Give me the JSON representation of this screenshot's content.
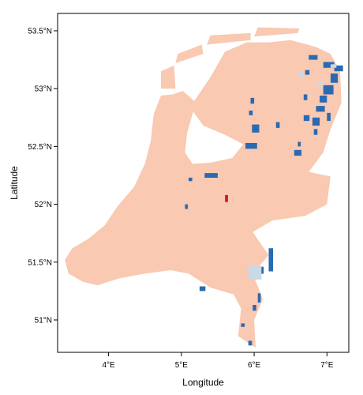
{
  "chart_data": {
    "type": "heatmap",
    "title": "",
    "xlabel": "Longitude",
    "ylabel": "Latitude",
    "xlim": [
      3.3,
      7.3
    ],
    "ylim": [
      50.72,
      53.65
    ],
    "x_ticks": [
      {
        "value": 4,
        "label": "4°E"
      },
      {
        "value": 5,
        "label": "5°E"
      },
      {
        "value": 6,
        "label": "6°E"
      },
      {
        "value": 7,
        "label": "7°E"
      }
    ],
    "y_ticks": [
      {
        "value": 51.0,
        "label": "51°N"
      },
      {
        "value": 51.5,
        "label": "51.5°N"
      },
      {
        "value": 52.0,
        "label": "52°N"
      },
      {
        "value": 52.5,
        "label": "52.5°N"
      },
      {
        "value": 53.0,
        "label": "53°N"
      },
      {
        "value": 53.5,
        "label": "53.5°N"
      }
    ],
    "grid": false,
    "legend": "none",
    "colors": {
      "land": "#f9c9b1",
      "high": "#2a6ab2",
      "medium": "#c9d9e6",
      "hotspot": "#cc1a22"
    },
    "land_outline_lonlat": [
      [
        4.72,
        52.94
      ],
      [
        4.62,
        52.78
      ],
      [
        4.58,
        52.55
      ],
      [
        4.5,
        52.35
      ],
      [
        4.35,
        52.15
      ],
      [
        4.12,
        51.98
      ],
      [
        3.95,
        51.82
      ],
      [
        3.72,
        51.7
      ],
      [
        3.5,
        51.62
      ],
      [
        3.4,
        51.52
      ],
      [
        3.45,
        51.4
      ],
      [
        3.65,
        51.33
      ],
      [
        3.85,
        51.3
      ],
      [
        4.15,
        51.36
      ],
      [
        4.5,
        51.4
      ],
      [
        4.85,
        51.43
      ],
      [
        5.1,
        51.4
      ],
      [
        5.4,
        51.28
      ],
      [
        5.72,
        51.22
      ],
      [
        5.82,
        51.1
      ],
      [
        5.78,
        50.86
      ],
      [
        6.02,
        50.76
      ],
      [
        6.0,
        51.0
      ],
      [
        6.12,
        51.18
      ],
      [
        5.98,
        51.4
      ],
      [
        6.2,
        51.56
      ],
      [
        5.98,
        51.76
      ],
      [
        6.25,
        51.86
      ],
      [
        6.7,
        51.9
      ],
      [
        7.0,
        52.0
      ],
      [
        7.05,
        52.24
      ],
      [
        6.75,
        52.28
      ],
      [
        6.95,
        52.45
      ],
      [
        7.05,
        52.65
      ],
      [
        7.2,
        52.88
      ],
      [
        7.18,
        53.15
      ],
      [
        7.05,
        53.3
      ],
      [
        6.85,
        53.36
      ],
      [
        6.5,
        53.42
      ],
      [
        6.2,
        53.4
      ],
      [
        5.9,
        53.4
      ],
      [
        5.6,
        53.32
      ],
      [
        5.4,
        53.1
      ],
      [
        5.12,
        52.84
      ],
      [
        5.3,
        52.68
      ],
      [
        5.6,
        52.6
      ],
      [
        5.85,
        52.52
      ],
      [
        5.7,
        52.4
      ],
      [
        5.4,
        52.36
      ],
      [
        5.15,
        52.35
      ],
      [
        5.05,
        52.45
      ],
      [
        5.08,
        52.62
      ],
      [
        5.2,
        52.88
      ],
      [
        5.02,
        52.98
      ],
      [
        4.88,
        52.95
      ]
    ],
    "islands_lonlat": [
      [
        [
          4.72,
          53.0
        ],
        [
          4.92,
          53.0
        ],
        [
          4.9,
          53.2
        ],
        [
          4.72,
          53.15
        ]
      ],
      [
        [
          4.92,
          53.22
        ],
        [
          5.3,
          53.3
        ],
        [
          5.28,
          53.38
        ],
        [
          4.95,
          53.3
        ]
      ],
      [
        [
          5.35,
          53.38
        ],
        [
          5.95,
          53.42
        ],
        [
          5.95,
          53.48
        ],
        [
          5.4,
          53.46
        ]
      ],
      [
        [
          6.0,
          53.45
        ],
        [
          6.6,
          53.48
        ],
        [
          6.62,
          53.52
        ],
        [
          6.05,
          53.53
        ]
      ]
    ],
    "cells": [
      {
        "lon": 5.6,
        "lat": 52.02,
        "w": 0.04,
        "h": 0.06,
        "class": "hotspot"
      },
      {
        "lon": 5.32,
        "lat": 52.23,
        "w": 0.18,
        "h": 0.04,
        "class": "high"
      },
      {
        "lon": 5.1,
        "lat": 52.2,
        "w": 0.05,
        "h": 0.03,
        "class": "high"
      },
      {
        "lon": 5.05,
        "lat": 51.96,
        "w": 0.04,
        "h": 0.04,
        "class": "high"
      },
      {
        "lon": 5.88,
        "lat": 52.48,
        "w": 0.16,
        "h": 0.05,
        "class": "high"
      },
      {
        "lon": 5.97,
        "lat": 52.62,
        "w": 0.1,
        "h": 0.07,
        "class": "high"
      },
      {
        "lon": 5.93,
        "lat": 52.77,
        "w": 0.05,
        "h": 0.04,
        "class": "high"
      },
      {
        "lon": 5.95,
        "lat": 52.87,
        "w": 0.05,
        "h": 0.05,
        "class": "high"
      },
      {
        "lon": 6.3,
        "lat": 52.66,
        "w": 0.05,
        "h": 0.05,
        "class": "high"
      },
      {
        "lon": 6.55,
        "lat": 52.42,
        "w": 0.1,
        "h": 0.05,
        "class": "high"
      },
      {
        "lon": 6.6,
        "lat": 52.5,
        "w": 0.04,
        "h": 0.04,
        "class": "high"
      },
      {
        "lon": 6.68,
        "lat": 52.72,
        "w": 0.08,
        "h": 0.05,
        "class": "high"
      },
      {
        "lon": 6.8,
        "lat": 52.68,
        "w": 0.1,
        "h": 0.07,
        "class": "high"
      },
      {
        "lon": 6.85,
        "lat": 52.8,
        "w": 0.12,
        "h": 0.05,
        "class": "high"
      },
      {
        "lon": 6.9,
        "lat": 52.88,
        "w": 0.1,
        "h": 0.06,
        "class": "high"
      },
      {
        "lon": 6.95,
        "lat": 52.95,
        "w": 0.14,
        "h": 0.08,
        "class": "high"
      },
      {
        "lon": 7.05,
        "lat": 53.05,
        "w": 0.1,
        "h": 0.08,
        "class": "high"
      },
      {
        "lon": 6.95,
        "lat": 53.18,
        "w": 0.15,
        "h": 0.05,
        "class": "high"
      },
      {
        "lon": 7.1,
        "lat": 53.15,
        "w": 0.12,
        "h": 0.05,
        "class": "high"
      },
      {
        "lon": 6.75,
        "lat": 53.25,
        "w": 0.12,
        "h": 0.04,
        "class": "high"
      },
      {
        "lon": 6.7,
        "lat": 53.12,
        "w": 0.06,
        "h": 0.04,
        "class": "high"
      },
      {
        "lon": 6.82,
        "lat": 52.6,
        "w": 0.05,
        "h": 0.05,
        "class": "high"
      },
      {
        "lon": 6.68,
        "lat": 52.9,
        "w": 0.05,
        "h": 0.05,
        "class": "high"
      },
      {
        "lon": 7.0,
        "lat": 52.72,
        "w": 0.05,
        "h": 0.07,
        "class": "high"
      },
      {
        "lon": 5.25,
        "lat": 51.25,
        "w": 0.08,
        "h": 0.04,
        "class": "high"
      },
      {
        "lon": 6.2,
        "lat": 51.42,
        "w": 0.06,
        "h": 0.2,
        "class": "high"
      },
      {
        "lon": 6.08,
        "lat": 51.4,
        "w": 0.05,
        "h": 0.06,
        "class": "high"
      },
      {
        "lon": 6.05,
        "lat": 51.15,
        "w": 0.04,
        "h": 0.08,
        "class": "high"
      },
      {
        "lon": 5.98,
        "lat": 51.08,
        "w": 0.05,
        "h": 0.05,
        "class": "high"
      },
      {
        "lon": 5.82,
        "lat": 50.94,
        "w": 0.05,
        "h": 0.03,
        "class": "high"
      },
      {
        "lon": 5.92,
        "lat": 50.78,
        "w": 0.05,
        "h": 0.04,
        "class": "high"
      },
      {
        "lon": 5.92,
        "lat": 51.35,
        "w": 0.18,
        "h": 0.12,
        "class": "medium"
      },
      {
        "lon": 6.62,
        "lat": 53.1,
        "w": 0.06,
        "h": 0.05,
        "class": "medium"
      },
      {
        "lon": 6.88,
        "lat": 53.02,
        "w": 0.06,
        "h": 0.04,
        "class": "medium"
      },
      {
        "lon": 7.05,
        "lat": 53.18,
        "w": 0.08,
        "h": 0.03,
        "class": "medium"
      }
    ]
  }
}
